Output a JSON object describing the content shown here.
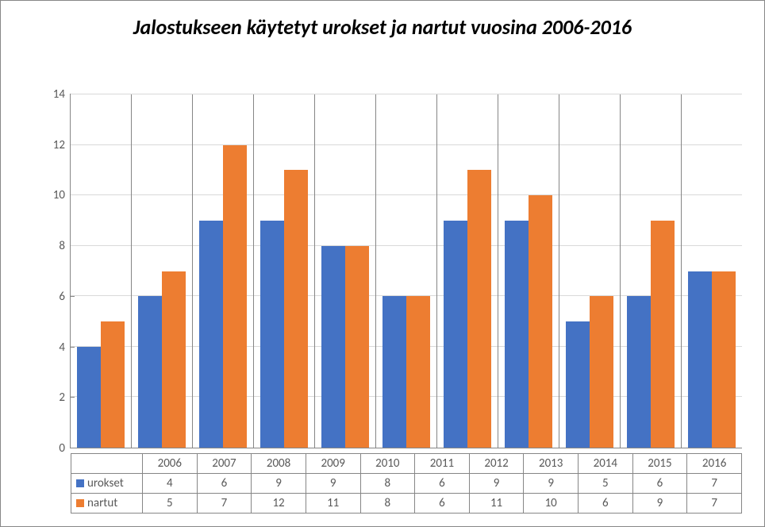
{
  "chart": {
    "type": "bar",
    "title": "Jalostukseen käytetyt urokset ja nartut vuosina 2006-2016",
    "title_fontsize": 26,
    "title_fontweight": "bold",
    "title_fontstyle": "italic",
    "title_color": "#000000",
    "background_color": "#ffffff",
    "border_color": "#888888",
    "grid_color": "#d9d9d9",
    "axis_color": "#868686",
    "tick_fontsize": 15,
    "tick_color": "#595959",
    "categories": [
      "2006",
      "2007",
      "2008",
      "2009",
      "2010",
      "2011",
      "2012",
      "2013",
      "2014",
      "2015",
      "2016"
    ],
    "series": [
      {
        "name": "urokset",
        "color": "#4472c4",
        "values": [
          4,
          6,
          9,
          9,
          8,
          6,
          9,
          9,
          5,
          6,
          7
        ]
      },
      {
        "name": "nartut",
        "color": "#ed7d31",
        "values": [
          5,
          7,
          12,
          11,
          8,
          6,
          11,
          10,
          6,
          9,
          7
        ]
      }
    ],
    "ylim": [
      0,
      14
    ],
    "ytick_step": 2,
    "bar_width_pct": 40,
    "yticks": [
      0,
      2,
      4,
      6,
      8,
      10,
      12,
      14
    ]
  }
}
